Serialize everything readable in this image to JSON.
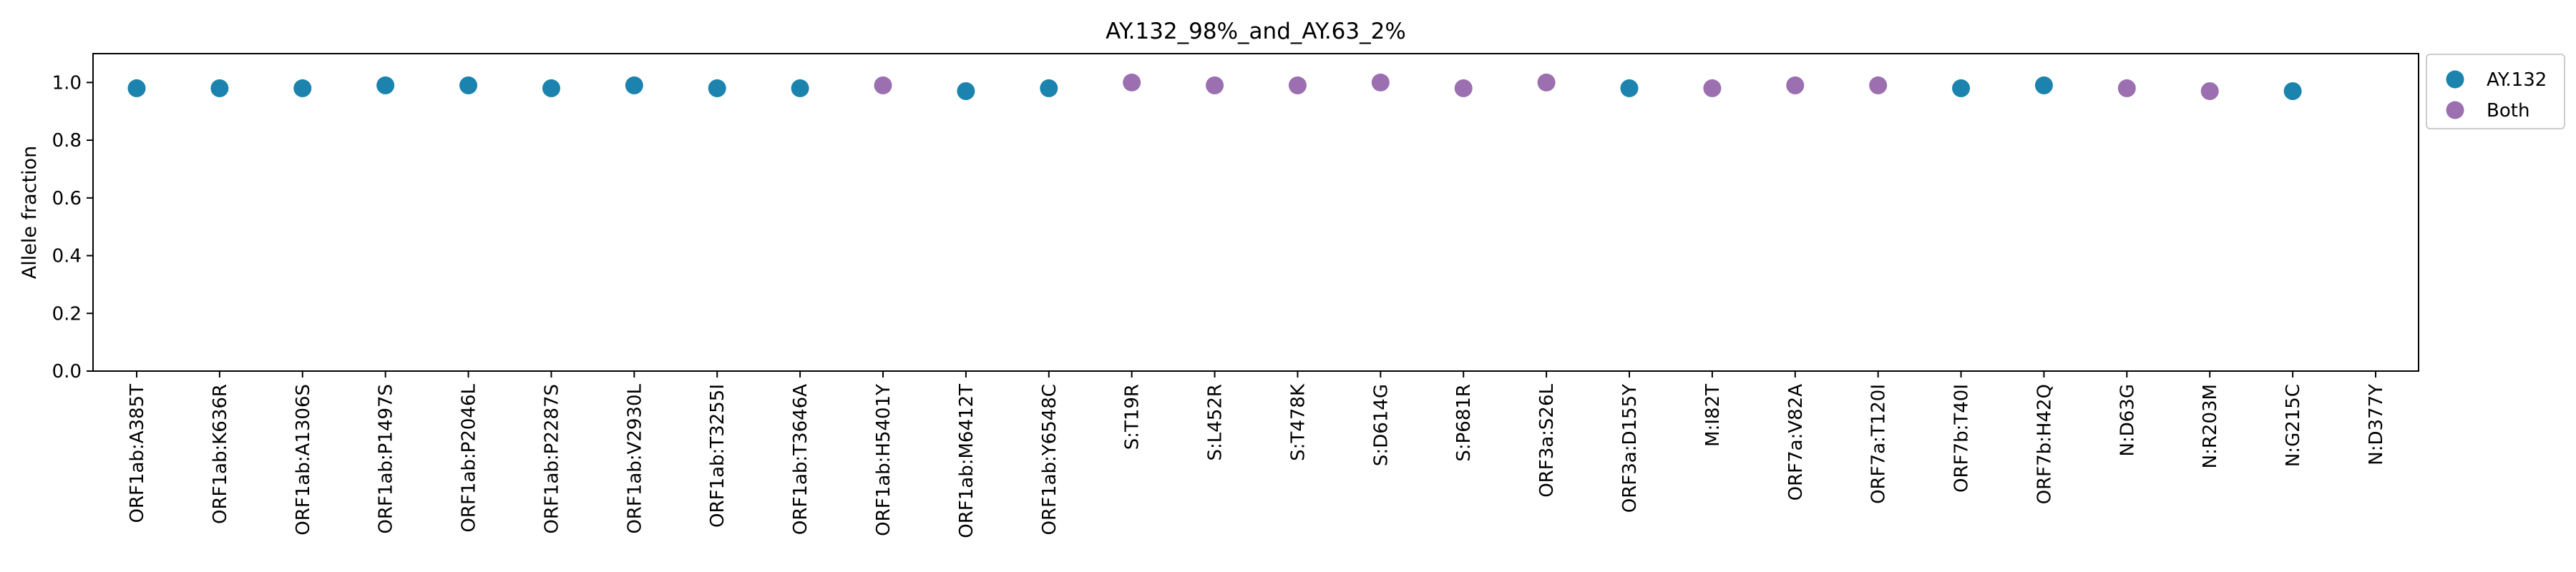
{
  "chart_data": {
    "type": "scatter",
    "title": "AY.132_98%_and_AY.63_2%",
    "xlabel": "",
    "ylabel": "Allele fraction",
    "ylim": [
      0,
      1.1
    ],
    "yticks": [
      "0.0",
      "0.2",
      "0.4",
      "0.6",
      "0.8",
      "1.0"
    ],
    "grid": false,
    "legend_position": "outside-top-right",
    "categories": [
      "ORF1ab:A385T",
      "ORF1ab:K636R",
      "ORF1ab:A1306S",
      "ORF1ab:P1497S",
      "ORF1ab:P2046L",
      "ORF1ab:P2287S",
      "ORF1ab:V2930L",
      "ORF1ab:T3255I",
      "ORF1ab:T3646A",
      "ORF1ab:H5401Y",
      "ORF1ab:M6412T",
      "ORF1ab:Y6548C",
      "S:T19R",
      "S:L452R",
      "S:T478K",
      "S:D614G",
      "S:P681R",
      "ORF3a:S26L",
      "ORF3a:D155Y",
      "M:I82T",
      "ORF7a:V82A",
      "ORF7a:T120I",
      "ORF7b:T40I",
      "ORF7b:H42Q",
      "N:D63G",
      "N:R203M",
      "N:G215C",
      "N:D377Y"
    ],
    "series": [
      {
        "name": "AY.132",
        "color": "#1b83ad",
        "points": [
          {
            "x": "ORF1ab:A385T",
            "y": 0.98
          },
          {
            "x": "ORF1ab:K636R",
            "y": 0.98
          },
          {
            "x": "ORF1ab:A1306S",
            "y": 0.98
          },
          {
            "x": "ORF1ab:P1497S",
            "y": 0.99
          },
          {
            "x": "ORF1ab:P2046L",
            "y": 0.99
          },
          {
            "x": "ORF1ab:P2287S",
            "y": 0.98
          },
          {
            "x": "ORF1ab:V2930L",
            "y": 0.99
          },
          {
            "x": "ORF1ab:T3255I",
            "y": 0.98
          },
          {
            "x": "ORF1ab:T3646A",
            "y": 0.98
          },
          {
            "x": "ORF1ab:M6412T",
            "y": 0.97
          },
          {
            "x": "ORF1ab:Y6548C",
            "y": 0.98
          },
          {
            "x": "ORF3a:D155Y",
            "y": 0.98
          },
          {
            "x": "ORF7b:T40I",
            "y": 0.98
          },
          {
            "x": "ORF7b:H42Q",
            "y": 0.99
          },
          {
            "x": "N:G215C",
            "y": 0.97
          }
        ]
      },
      {
        "name": "Both",
        "color": "#9b6fb0",
        "points": [
          {
            "x": "ORF1ab:H5401Y",
            "y": 0.99
          },
          {
            "x": "S:T19R",
            "y": 1.0
          },
          {
            "x": "S:L452R",
            "y": 0.99
          },
          {
            "x": "S:T478K",
            "y": 0.99
          },
          {
            "x": "S:D614G",
            "y": 1.0
          },
          {
            "x": "S:P681R",
            "y": 0.98
          },
          {
            "x": "ORF3a:S26L",
            "y": 1.0
          },
          {
            "x": "M:I82T",
            "y": 0.98
          },
          {
            "x": "ORF7a:V82A",
            "y": 0.99
          },
          {
            "x": "ORF7a:T120I",
            "y": 0.99
          },
          {
            "x": "N:D63G",
            "y": 0.98
          },
          {
            "x": "N:R203M",
            "y": 0.97
          }
        ]
      }
    ]
  }
}
